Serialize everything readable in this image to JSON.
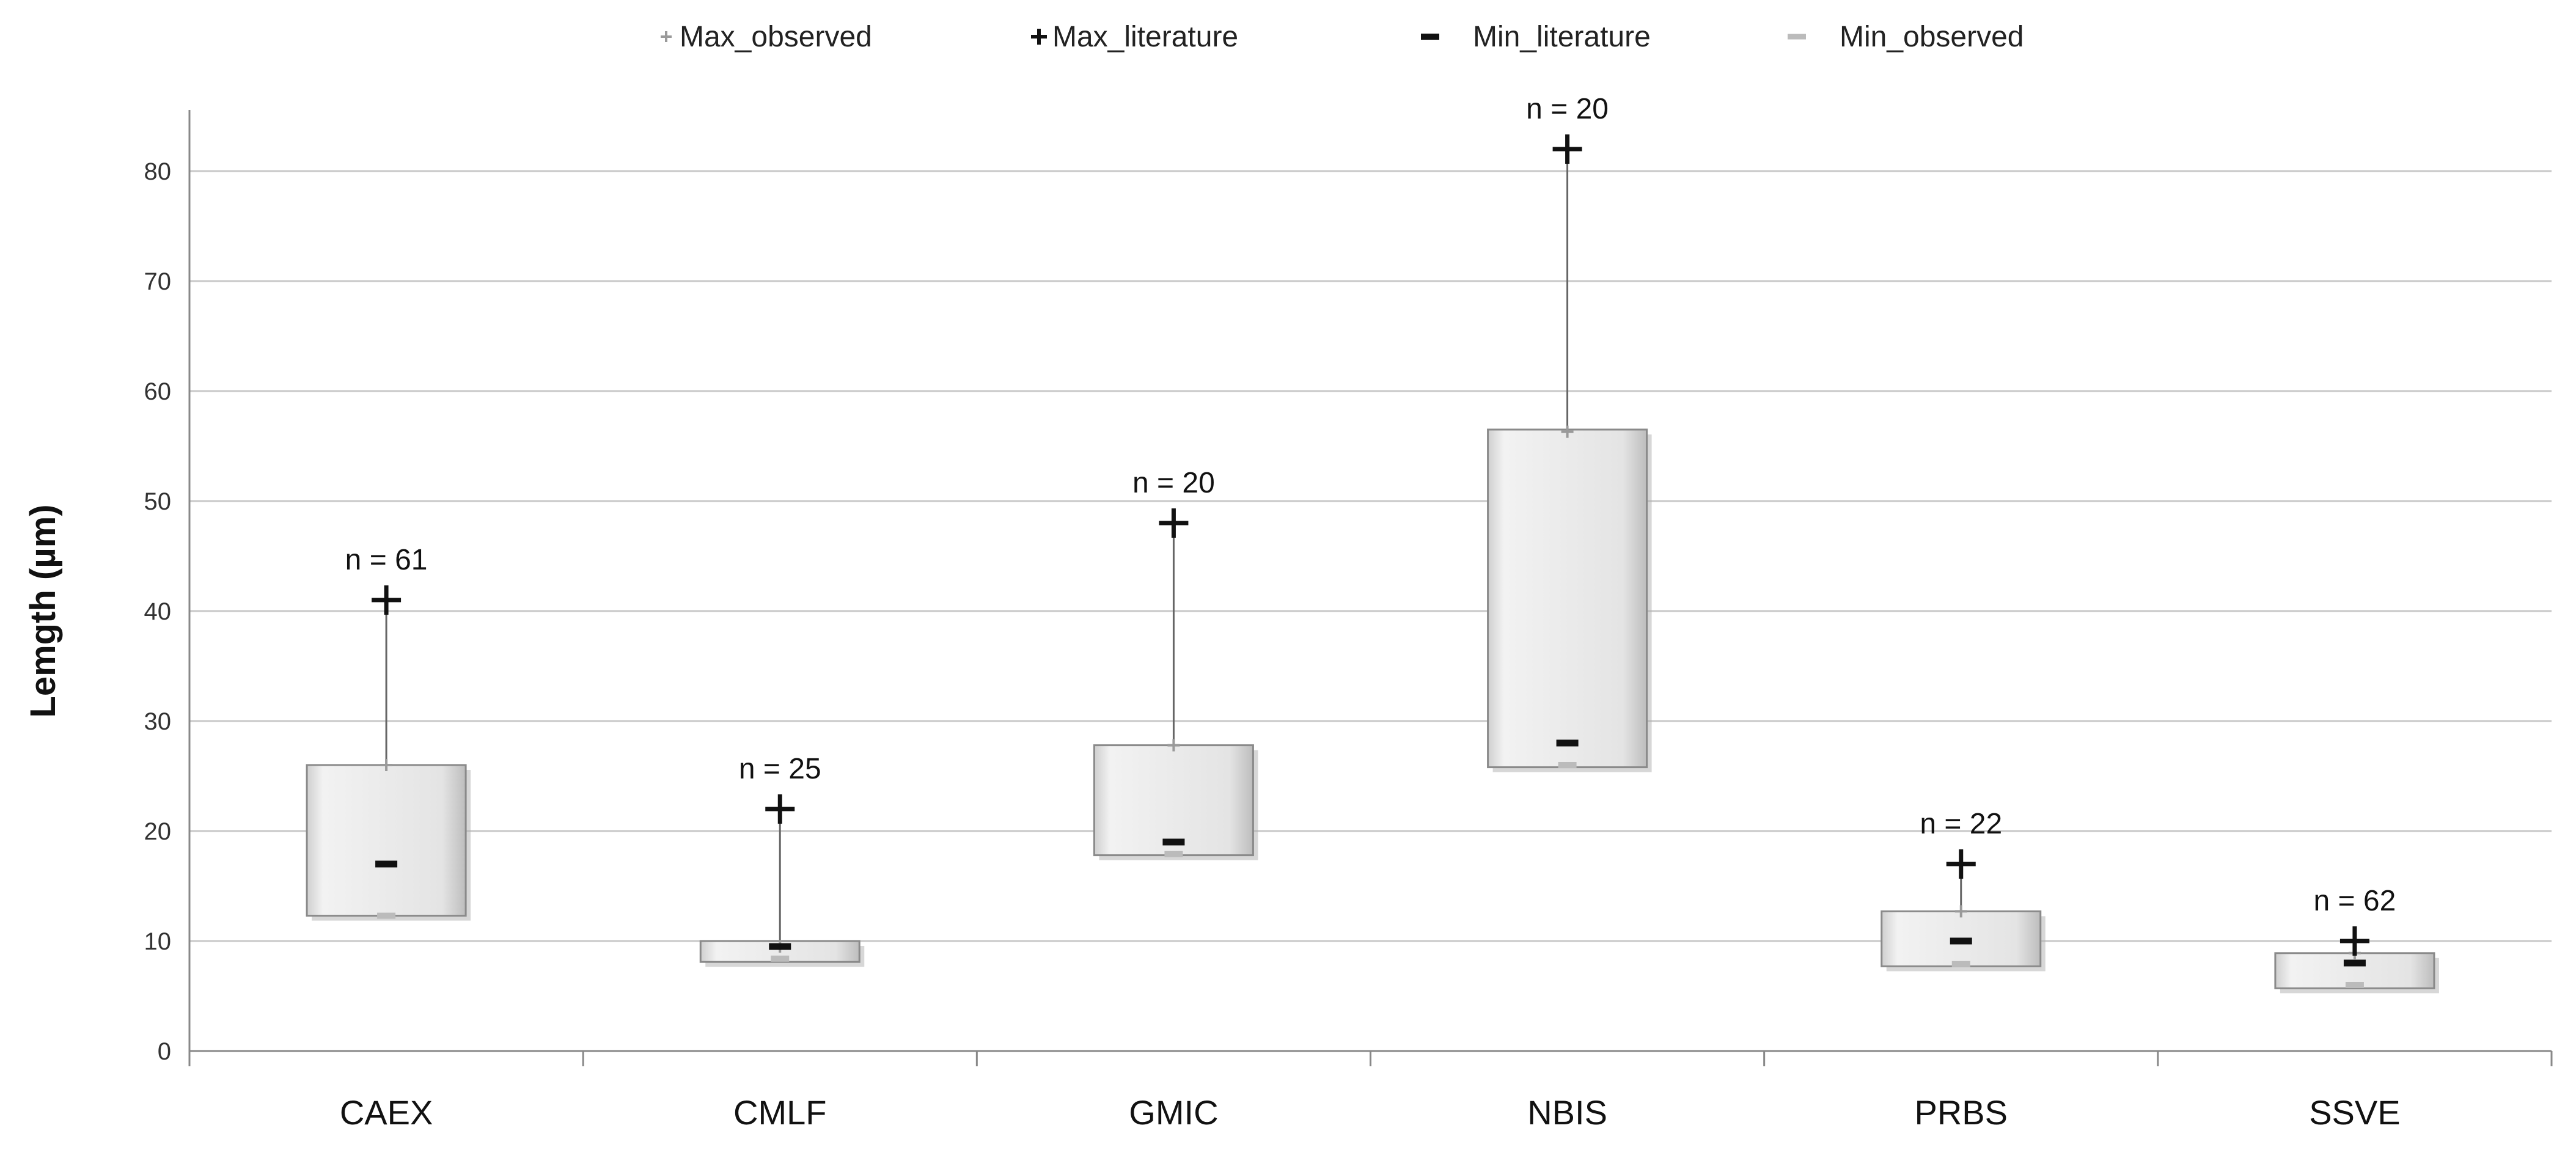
{
  "chart_data": {
    "type": "box",
    "title": "",
    "xlabel": "",
    "ylabel": "Lemgth (µm)",
    "ylim": [
      0,
      85
    ],
    "yticks": [
      0,
      10,
      20,
      30,
      40,
      50,
      60,
      70,
      80
    ],
    "grid": true,
    "legend_position": "top",
    "legend": [
      {
        "key": "max_observed",
        "label": "Max_observed"
      },
      {
        "key": "max_literature",
        "label": "Max_literature"
      },
      {
        "key": "min_literature",
        "label": "Min_literature"
      },
      {
        "key": "min_observed",
        "label": "Min_observed"
      }
    ],
    "categories": [
      "CAEX",
      "CMLF",
      "GMIC",
      "NBIS",
      "PRBS",
      "SSVE"
    ],
    "box_lower": [
      12.3,
      8.1,
      17.8,
      25.8,
      7.7,
      5.7
    ],
    "box_upper": [
      26.0,
      10.0,
      27.8,
      56.5,
      12.7,
      8.9
    ],
    "max_observed": [
      26.0,
      9.5,
      27.8,
      56.3,
      12.7,
      8.9
    ],
    "max_literature": [
      41,
      22,
      48,
      82,
      17,
      10
    ],
    "min_literature": [
      17,
      9.5,
      19,
      28,
      10,
      8
    ],
    "min_observed": [
      12.3,
      8.4,
      17.9,
      26.0,
      7.9,
      6.0
    ],
    "n_labels": [
      "n = 61",
      "n = 25",
      "n = 20",
      "n = 20",
      "n = 22",
      "n = 62"
    ],
    "colors": {
      "box_fill": "#e6e6e6",
      "box_stroke": "#8a8a8a",
      "max_observed": "#9a9a9a",
      "max_literature": "#111111",
      "min_literature": "#111111",
      "min_observed": "#bbbbbb",
      "grid": "#c8c8c8",
      "whisker": "#666666"
    }
  }
}
